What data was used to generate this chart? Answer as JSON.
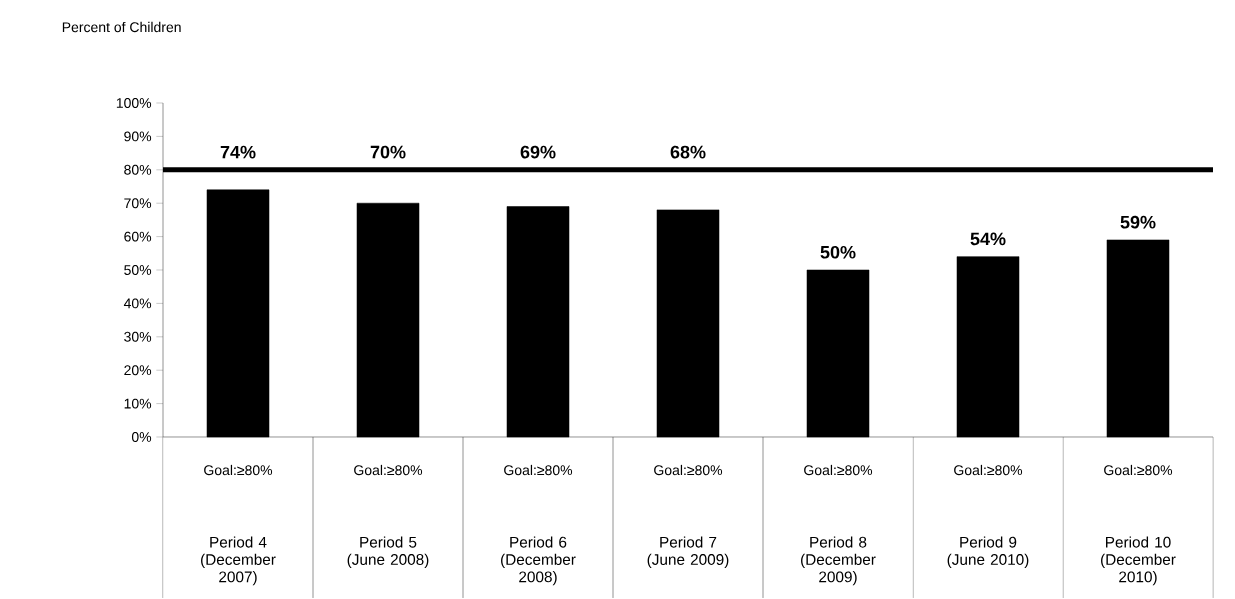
{
  "chart_data": {
    "type": "bar",
    "ylabel": "Percent of Children",
    "categories": [
      "Period 4 (December 2007)",
      "Period 5 (June 2008)",
      "Period 6 (December 2008)",
      "Period 7 (June 2009)",
      "Period 8 (December 2009)",
      "Period 9 (June 2010)",
      "Period 10 (December 2010)"
    ],
    "values": [
      74,
      70,
      69,
      68,
      50,
      54,
      59
    ],
    "color": "#000000",
    "ylim": [
      0,
      100
    ],
    "yticks": [
      {
        "value": 0,
        "label": "0%"
      },
      {
        "value": 10,
        "label": "10%"
      },
      {
        "value": 20,
        "label": "20%"
      },
      {
        "value": 30,
        "label": "30%"
      },
      {
        "value": 40,
        "label": "40%"
      },
      {
        "value": 50,
        "label": "50%"
      },
      {
        "value": 60,
        "label": "60%"
      },
      {
        "value": 70,
        "label": "70%"
      },
      {
        "value": 80,
        "label": "80%"
      },
      {
        "value": 90,
        "label": "90%"
      },
      {
        "value": 100,
        "label": "100%"
      }
    ],
    "value_labels": [
      "74%",
      "70%",
      "69%",
      "68%",
      "50%",
      "54%",
      "59%"
    ],
    "ref_lines": [
      {
        "axis": "y",
        "value": 80,
        "color": "#000000"
      }
    ],
    "annotations": [
      "Goal:≥80%",
      "Goal:≥80%",
      "Goal:≥80%",
      "Goal:≥80%",
      "Goal:≥80%",
      "Goal:≥80%",
      "Goal:≥80%"
    ],
    "grid": false
  }
}
